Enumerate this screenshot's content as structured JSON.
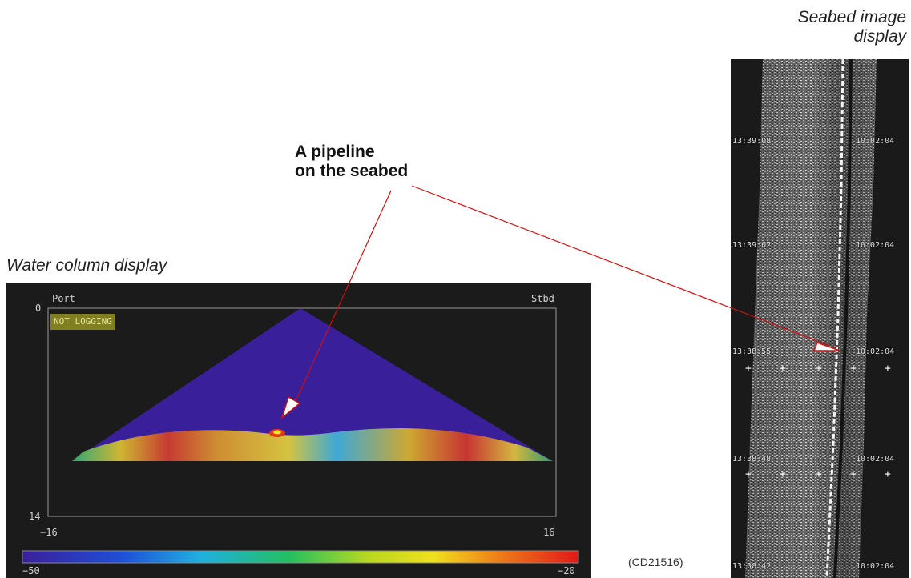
{
  "annotations": {
    "seabed_title_line1": "Seabed image",
    "seabed_title_line2": "display",
    "pipeline_line1": "A pipeline",
    "pipeline_line2": "on the seabed",
    "water_column_title": "Water column display",
    "reference_code": "(CD21516)"
  },
  "water_column": {
    "port_label": "Port",
    "stbd_label": "Stbd",
    "status_badge": "NOT LOGGING",
    "depth_top": "0",
    "depth_bottom": "14",
    "x_min": "−16",
    "x_max": "16",
    "scale_min": "−50",
    "scale_max": "−20",
    "colors": {
      "background": "#1b1b1b",
      "fan": "#3a1f9a",
      "frame": "#9a9a9a"
    }
  },
  "seabed_image": {
    "port_times": [
      "13:39:08",
      "13:39:02",
      "13:38:55",
      "13:38:48",
      "13:38:42"
    ],
    "stbd_times": [
      "10:02:04",
      "10:02:04",
      "10:02:04",
      "10:02:04",
      "10:02:04"
    ],
    "marker_icon": "plus-marker"
  },
  "colors": {
    "arrow": "#cc1111",
    "arrow_fill": "#ffffff"
  }
}
